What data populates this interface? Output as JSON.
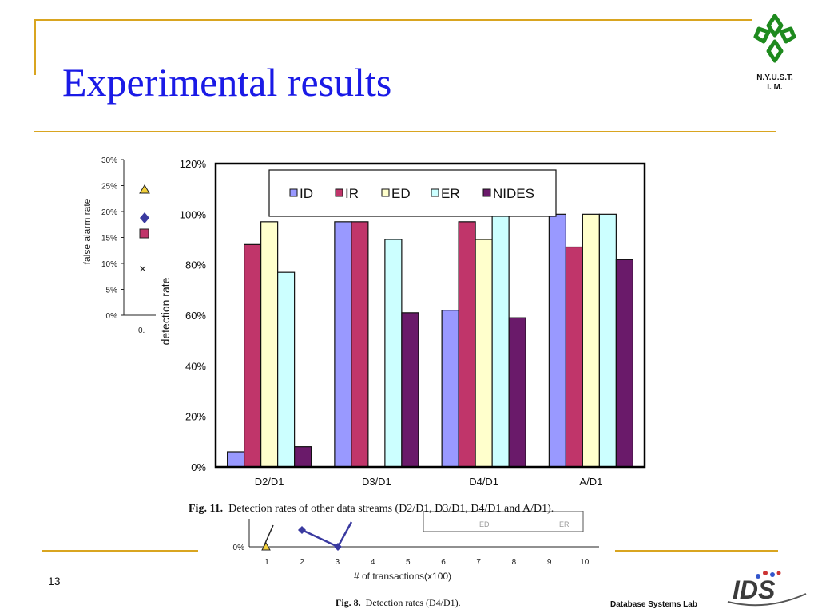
{
  "slide": {
    "title": "Experimental results",
    "page_number": "13",
    "logo_text_line1": "N.Y.U.S.T.",
    "logo_text_line2": "I. M.",
    "lab_text": "Database Systems Lab",
    "lab_logo_text": "IDS",
    "accent_color": "#d9a520",
    "title_color": "#1a1ae6"
  },
  "chart_data": [
    {
      "type": "bar",
      "caption_label": "Fig. 11.",
      "caption_text": "Detection rates of other data streams (D2/D1, D3/D1, D4/D1 and A/D1).",
      "ylabel": "detection rate",
      "ylim": [
        0,
        120
      ],
      "yticks": [
        "0%",
        "20%",
        "40%",
        "60%",
        "80%",
        "100%",
        "120%"
      ],
      "categories": [
        "D2/D1",
        "D3/D1",
        "D4/D1",
        "A/D1"
      ],
      "legend_position": "top",
      "series": [
        {
          "name": "ID",
          "color": "#9999ff",
          "values": [
            6,
            97,
            62,
            100
          ]
        },
        {
          "name": "IR",
          "color": "#c0356a",
          "values": [
            88,
            97,
            97,
            87
          ]
        },
        {
          "name": "ED",
          "color": "#ffffcc",
          "values": [
            97,
            null,
            90,
            100
          ]
        },
        {
          "name": "ER",
          "color": "#ccffff",
          "values": [
            77,
            90,
            100,
            100
          ]
        },
        {
          "name": "NIDES",
          "color": "#6a1a6a",
          "values": [
            8,
            61,
            59,
            82
          ]
        }
      ]
    },
    {
      "type": "line",
      "ylabel": "false alarm rate",
      "yticks": [
        "0%",
        "5%",
        "10%",
        "15%",
        "20%",
        "25%",
        "30%"
      ],
      "x_tick_visible": "0."
    },
    {
      "type": "line",
      "caption_label": "Fig. 8.",
      "caption_text": "Detection rates (D4/D1).",
      "xlabel": "# of transactions(x100)",
      "x": [
        1,
        2,
        3,
        4,
        5,
        6,
        7,
        8,
        9,
        10
      ],
      "ytick_visible": "0%",
      "legend_fragments": [
        "ED",
        "ER"
      ]
    }
  ]
}
